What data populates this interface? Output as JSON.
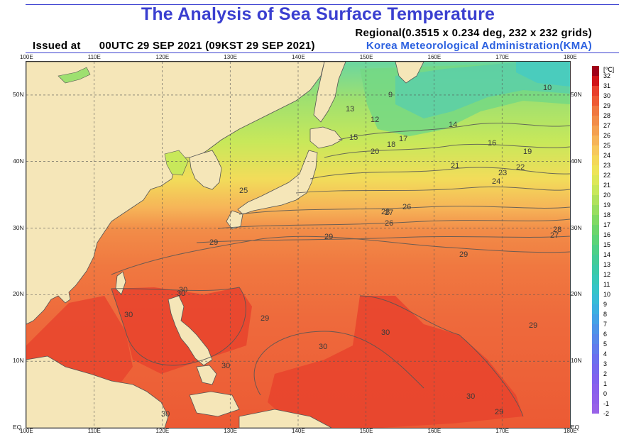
{
  "header": {
    "title": "The Analysis of Sea Surface Temperature",
    "issued_label": "Issued at",
    "issued_time": "00UTC 29 SEP 2021 (09KST 29 SEP 2021)",
    "regional": "Regional(0.3515 x 0.234 deg, 232 x 232 grids)",
    "agency": "Korea Meteorological Administration(KMA)"
  },
  "axes": {
    "lon_top": [
      "100E",
      "110E",
      "120E",
      "130E",
      "140E",
      "150E",
      "160E",
      "170E",
      "180E"
    ],
    "lon_bottom": [
      "100E",
      "110E",
      "120E",
      "130E",
      "140E",
      "150E",
      "160E",
      "170E",
      "180E"
    ],
    "lat_left": [
      "50N",
      "40N",
      "30N",
      "20N",
      "10N",
      "EQ"
    ],
    "lat_right": [
      "50N",
      "40N",
      "30N",
      "20N",
      "10N",
      "EQ"
    ]
  },
  "legend": {
    "unit": "[℃]",
    "labels": [
      "32",
      "31",
      "30",
      "29",
      "28",
      "27",
      "26",
      "25",
      "24",
      "23",
      "22",
      "21",
      "20",
      "19",
      "18",
      "17",
      "16",
      "15",
      "14",
      "13",
      "12",
      "11",
      "10",
      "9",
      "8",
      "7",
      "6",
      "5",
      "4",
      "3",
      "2",
      "1",
      "0",
      "-1",
      "-2"
    ],
    "colors": [
      "#a00018",
      "#d01418",
      "#e8402c",
      "#ee5a34",
      "#f07840",
      "#f28c48",
      "#f4a050",
      "#f6b458",
      "#f7c85c",
      "#f4d858",
      "#eee458",
      "#dde858",
      "#c8e85a",
      "#b0e25c",
      "#98de60",
      "#80da64",
      "#6cd66c",
      "#5cd478",
      "#4ed088",
      "#44cc98",
      "#3ccaa8",
      "#38c8b8",
      "#36c4c8",
      "#38bcd6",
      "#3cb0e0",
      "#44a2e6",
      "#4e94e8",
      "#5888ea",
      "#627cec",
      "#6c70ee",
      "#7668ee",
      "#8062ee",
      "#8a60ec",
      "#9060ea",
      "#9862e8"
    ]
  },
  "contour_labels": [
    "9",
    "10",
    "12",
    "13",
    "14",
    "15",
    "16",
    "17",
    "18",
    "19",
    "20",
    "21",
    "22",
    "23",
    "24",
    "25",
    "26",
    "27",
    "28",
    "29",
    "30"
  ],
  "map": {
    "lon_range": [
      100,
      180
    ],
    "lat_range": [
      0,
      55
    ],
    "land_color": "#f5e6b8",
    "grid": "dashed"
  }
}
